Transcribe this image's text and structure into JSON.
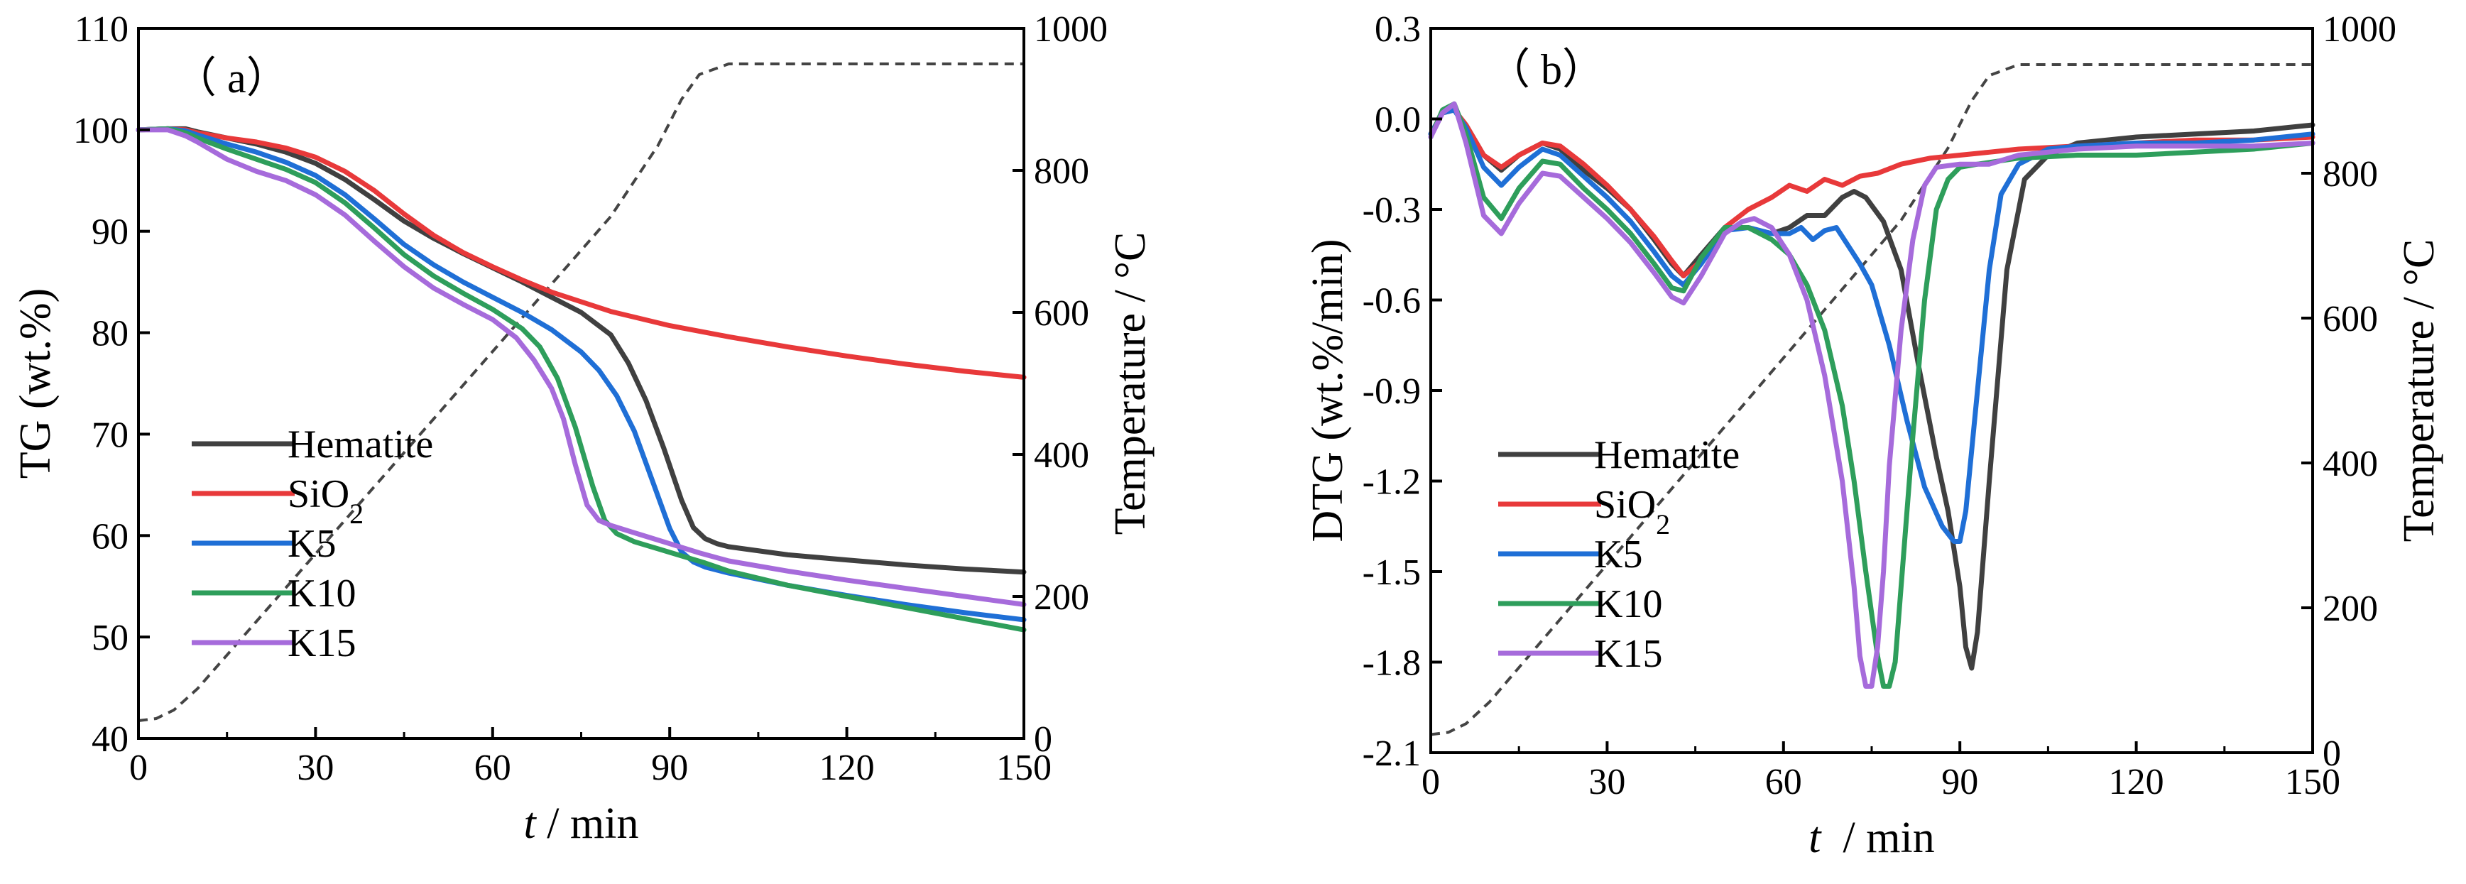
{
  "chart_data": [
    {
      "type": "line",
      "panel_label": "（ a）",
      "xlabel": "t / min",
      "xlabel_var": "t",
      "xlabel_unit": " / min",
      "ylabel": "TG (wt.%)",
      "y2label": "Temperature / °C",
      "xlim": [
        0,
        150
      ],
      "ylim": [
        40,
        110
      ],
      "y2lim": [
        0,
        1000
      ],
      "xticks": [
        "0",
        "30",
        "60",
        "90",
        "120",
        "150"
      ],
      "yticks": [
        "40",
        "50",
        "60",
        "70",
        "80",
        "90",
        "100",
        "110"
      ],
      "y2ticks": [
        "0",
        "200",
        "400",
        "600",
        "800",
        "1000"
      ],
      "legend": [
        "Hematite",
        "SiO2",
        "K5",
        "K10",
        "K15"
      ],
      "legend_position": "lower-left",
      "temperature": {
        "name": "Temperature",
        "color": "#444444",
        "dashed": true,
        "x": [
          0,
          3,
          6,
          10,
          20,
          30,
          40,
          50,
          60,
          70,
          80,
          88,
          92,
          95,
          100,
          110,
          120,
          150
        ],
        "y": [
          25,
          28,
          40,
          70,
          165,
          260,
          355,
          450,
          545,
          640,
          735,
          835,
          900,
          935,
          950,
          950,
          950,
          950
        ]
      },
      "series": [
        {
          "name": "Hematite",
          "color": "#404040",
          "x": [
            0,
            5,
            8,
            10,
            15,
            20,
            25,
            30,
            35,
            40,
            45,
            50,
            55,
            60,
            65,
            70,
            75,
            80,
            83,
            86,
            89,
            92,
            94,
            96,
            98,
            100,
            110,
            120,
            130,
            140,
            150
          ],
          "y": [
            100,
            100.1,
            100.1,
            99.8,
            99.2,
            98.6,
            97.8,
            96.7,
            95.1,
            93.1,
            91.0,
            89.3,
            87.8,
            86.4,
            85.0,
            83.5,
            82.0,
            79.8,
            77.0,
            73.3,
            68.6,
            63.5,
            60.8,
            59.7,
            59.2,
            58.9,
            58.1,
            57.6,
            57.1,
            56.7,
            56.4
          ]
        },
        {
          "name": "SiO2",
          "color": "#e8393a",
          "x": [
            0,
            5,
            8,
            10,
            15,
            20,
            25,
            30,
            35,
            40,
            45,
            50,
            55,
            60,
            65,
            70,
            80,
            90,
            100,
            110,
            120,
            130,
            140,
            150
          ],
          "y": [
            100,
            100.1,
            100,
            99.7,
            99.2,
            98.8,
            98.2,
            97.3,
            95.9,
            94.0,
            91.7,
            89.6,
            87.9,
            86.5,
            85.2,
            84.0,
            82.1,
            80.7,
            79.6,
            78.6,
            77.7,
            76.9,
            76.2,
            75.6
          ]
        },
        {
          "name": "K5",
          "color": "#1f6fd6",
          "x": [
            0,
            5,
            8,
            10,
            15,
            20,
            25,
            30,
            35,
            40,
            45,
            50,
            55,
            60,
            65,
            70,
            75,
            78,
            81,
            84,
            87,
            90,
            92,
            94,
            96,
            100,
            110,
            120,
            130,
            140,
            150
          ],
          "y": [
            100,
            100.1,
            99.9,
            99.5,
            98.6,
            97.8,
            96.8,
            95.5,
            93.6,
            91.2,
            88.7,
            86.7,
            85.0,
            83.5,
            82.0,
            80.3,
            78.1,
            76.3,
            73.8,
            70.3,
            65.5,
            60.7,
            58.4,
            57.4,
            56.9,
            56.3,
            55.1,
            54.1,
            53.2,
            52.4,
            51.7
          ]
        },
        {
          "name": "K10",
          "color": "#2e9e5b",
          "x": [
            0,
            5,
            8,
            10,
            15,
            20,
            25,
            30,
            35,
            40,
            45,
            50,
            55,
            60,
            65,
            68,
            71,
            74,
            77,
            79,
            81,
            84,
            88,
            92,
            96,
            100,
            110,
            120,
            130,
            140,
            150
          ],
          "y": [
            100,
            100.1,
            99.7,
            99.2,
            98.1,
            97.1,
            96.1,
            94.8,
            92.8,
            90.3,
            87.7,
            85.6,
            83.9,
            82.3,
            80.4,
            78.6,
            75.5,
            70.7,
            64.8,
            61.5,
            60.2,
            59.4,
            58.7,
            58.0,
            57.3,
            56.5,
            55.1,
            54.0,
            52.9,
            51.8,
            50.7
          ]
        },
        {
          "name": "K15",
          "color": "#a66bdb",
          "x": [
            0,
            5,
            8,
            10,
            15,
            20,
            25,
            30,
            35,
            40,
            45,
            50,
            55,
            60,
            64,
            67,
            70,
            72,
            74,
            76,
            78,
            80,
            85,
            90,
            95,
            100,
            110,
            120,
            130,
            140,
            150
          ],
          "y": [
            100,
            100,
            99.4,
            98.8,
            97.1,
            95.9,
            95.0,
            93.6,
            91.6,
            89.0,
            86.5,
            84.4,
            82.8,
            81.3,
            79.5,
            77.3,
            74.5,
            71.5,
            67.0,
            63.0,
            61.5,
            61.0,
            60.1,
            59.2,
            58.3,
            57.5,
            56.5,
            55.6,
            54.8,
            54.0,
            53.2
          ]
        }
      ]
    },
    {
      "type": "line",
      "panel_label": "（ b）",
      "xlabel": "t  / min",
      "xlabel_var": "t",
      "xlabel_unit": "  / min",
      "ylabel": "DTG (wt.%/min)",
      "y2label": "Temperature / °C",
      "xlim": [
        0,
        150
      ],
      "ylim": [
        -2.1,
        0.3
      ],
      "y2lim": [
        0,
        1000
      ],
      "xticks": [
        "0",
        "30",
        "60",
        "90",
        "120",
        "150"
      ],
      "yticks": [
        "-2.1",
        "-1.8",
        "-1.5",
        "-1.2",
        "-0.9",
        "-0.6",
        "-0.3",
        "0.0",
        "0.3"
      ],
      "y2ticks": [
        "0",
        "200",
        "400",
        "600",
        "800",
        "1000"
      ],
      "legend": [
        "Hematite",
        "SiO2",
        "K5",
        "K10",
        "K15"
      ],
      "legend_position": "lower-left",
      "temperature": {
        "name": "Temperature",
        "color": "#444444",
        "dashed": true,
        "x": [
          0,
          3,
          6,
          10,
          20,
          30,
          40,
          50,
          60,
          70,
          80,
          88,
          92,
          95,
          100,
          110,
          120,
          150
        ],
        "y": [
          25,
          28,
          40,
          70,
          165,
          260,
          355,
          450,
          545,
          640,
          735,
          835,
          900,
          935,
          950,
          950,
          950,
          950
        ]
      },
      "series": [
        {
          "name": "Hematite",
          "color": "#404040",
          "x": [
            0,
            2,
            4,
            6,
            9,
            12,
            15,
            19,
            22,
            26,
            30,
            34,
            38,
            41,
            43,
            46,
            50,
            54,
            58,
            61,
            64,
            67,
            70,
            72,
            74,
            77,
            80,
            83,
            86,
            88,
            90,
            91,
            92,
            93,
            95,
            98,
            101,
            105,
            110,
            120,
            130,
            140,
            150
          ],
          "y": [
            -0.05,
            0.02,
            0.03,
            -0.02,
            -0.12,
            -0.17,
            -0.12,
            -0.08,
            -0.1,
            -0.17,
            -0.23,
            -0.3,
            -0.4,
            -0.48,
            -0.52,
            -0.45,
            -0.36,
            -0.36,
            -0.38,
            -0.36,
            -0.32,
            -0.32,
            -0.26,
            -0.24,
            -0.26,
            -0.34,
            -0.5,
            -0.82,
            -1.12,
            -1.3,
            -1.55,
            -1.75,
            -1.82,
            -1.7,
            -1.2,
            -0.5,
            -0.2,
            -0.12,
            -0.08,
            -0.06,
            -0.05,
            -0.04,
            -0.02
          ]
        },
        {
          "name": "SiO2",
          "color": "#e8393a",
          "x": [
            0,
            2,
            4,
            6,
            9,
            12,
            15,
            19,
            22,
            26,
            30,
            34,
            38,
            41,
            43,
            46,
            50,
            54,
            58,
            61,
            64,
            67,
            70,
            73,
            76,
            80,
            85,
            90,
            95,
            100,
            110,
            120,
            130,
            140,
            150
          ],
          "y": [
            -0.05,
            0.02,
            0.03,
            -0.02,
            -0.12,
            -0.16,
            -0.12,
            -0.08,
            -0.09,
            -0.15,
            -0.22,
            -0.3,
            -0.39,
            -0.47,
            -0.52,
            -0.47,
            -0.36,
            -0.3,
            -0.26,
            -0.22,
            -0.24,
            -0.2,
            -0.22,
            -0.19,
            -0.18,
            -0.15,
            -0.13,
            -0.12,
            -0.11,
            -0.1,
            -0.09,
            -0.08,
            -0.07,
            -0.07,
            -0.06
          ]
        },
        {
          "name": "K5",
          "color": "#1f6fd6",
          "x": [
            0,
            2,
            4,
            6,
            9,
            12,
            15,
            19,
            22,
            26,
            30,
            34,
            38,
            41,
            43,
            46,
            50,
            54,
            58,
            61,
            63,
            65,
            67,
            69,
            71,
            73,
            75,
            78,
            81,
            84,
            87,
            89,
            90,
            91,
            93,
            95,
            97,
            100,
            105,
            110,
            120,
            130,
            140,
            150
          ],
          "y": [
            -0.05,
            0.02,
            0.03,
            -0.03,
            -0.16,
            -0.22,
            -0.16,
            -0.1,
            -0.12,
            -0.19,
            -0.26,
            -0.34,
            -0.44,
            -0.52,
            -0.55,
            -0.48,
            -0.37,
            -0.36,
            -0.38,
            -0.38,
            -0.36,
            -0.4,
            -0.37,
            -0.36,
            -0.42,
            -0.48,
            -0.55,
            -0.75,
            -1.0,
            -1.22,
            -1.35,
            -1.4,
            -1.4,
            -1.3,
            -0.9,
            -0.5,
            -0.25,
            -0.15,
            -0.1,
            -0.09,
            -0.08,
            -0.08,
            -0.07,
            -0.05
          ]
        },
        {
          "name": "K10",
          "color": "#2e9e5b",
          "x": [
            0,
            2,
            4,
            6,
            9,
            12,
            15,
            19,
            22,
            26,
            30,
            34,
            38,
            41,
            43,
            46,
            50,
            54,
            58,
            61,
            64,
            67,
            70,
            72,
            74,
            76,
            77,
            78,
            79,
            80,
            82,
            84,
            86,
            88,
            90,
            93,
            100,
            110,
            120,
            130,
            140,
            150
          ],
          "y": [
            -0.06,
            0.03,
            0.05,
            -0.05,
            -0.26,
            -0.33,
            -0.23,
            -0.14,
            -0.15,
            -0.23,
            -0.3,
            -0.38,
            -0.48,
            -0.56,
            -0.57,
            -0.46,
            -0.36,
            -0.36,
            -0.4,
            -0.45,
            -0.55,
            -0.7,
            -0.95,
            -1.2,
            -1.5,
            -1.78,
            -1.88,
            -1.88,
            -1.8,
            -1.55,
            -1.05,
            -0.6,
            -0.3,
            -0.2,
            -0.16,
            -0.15,
            -0.13,
            -0.12,
            -0.12,
            -0.11,
            -0.1,
            -0.08
          ]
        },
        {
          "name": "K15",
          "color": "#a66bdb",
          "x": [
            0,
            2,
            4,
            6,
            9,
            12,
            15,
            19,
            22,
            26,
            30,
            34,
            38,
            41,
            43,
            46,
            50,
            53,
            55,
            58,
            61,
            64,
            67,
            70,
            72,
            73,
            74,
            75,
            76,
            77,
            78,
            80,
            82,
            84,
            86,
            90,
            95,
            100,
            110,
            120,
            130,
            140,
            150
          ],
          "y": [
            -0.06,
            0.02,
            0.05,
            -0.08,
            -0.32,
            -0.38,
            -0.28,
            -0.18,
            -0.19,
            -0.26,
            -0.33,
            -0.41,
            -0.51,
            -0.59,
            -0.61,
            -0.52,
            -0.38,
            -0.34,
            -0.33,
            -0.36,
            -0.45,
            -0.6,
            -0.85,
            -1.2,
            -1.55,
            -1.78,
            -1.88,
            -1.88,
            -1.75,
            -1.5,
            -1.15,
            -0.7,
            -0.4,
            -0.22,
            -0.16,
            -0.15,
            -0.15,
            -0.12,
            -0.1,
            -0.09,
            -0.09,
            -0.09,
            -0.08
          ]
        }
      ]
    }
  ]
}
